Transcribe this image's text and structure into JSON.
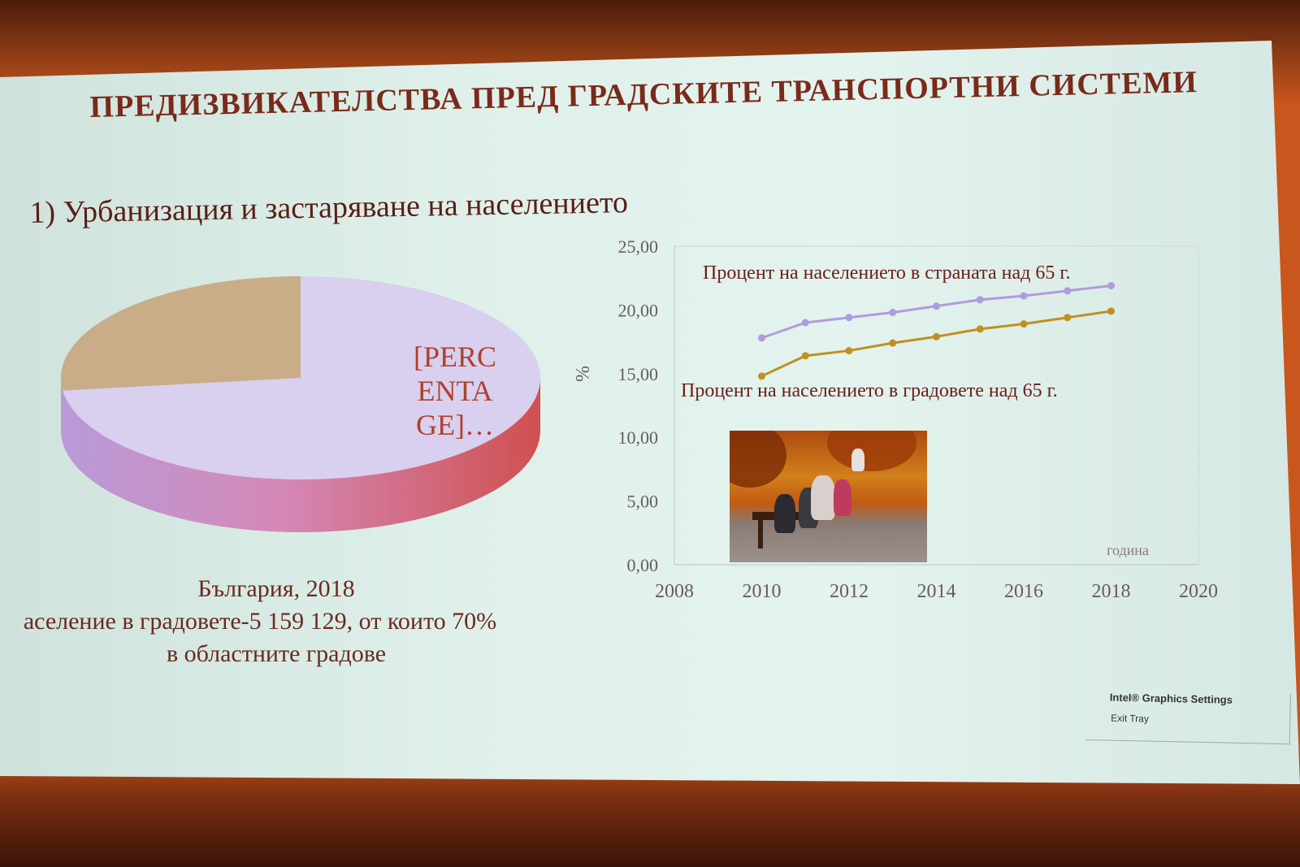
{
  "slide": {
    "title": "ПРЕДИЗВИКАТЕЛСТВА ПРЕД ГРАДСКИТЕ ТРАНСПОРТНИ СИСТЕМИ",
    "subtitle": "1) Урбанизация и застаряване на населението"
  },
  "pie": {
    "label_lines": [
      "[PERC",
      "ENTA",
      "GE]…"
    ],
    "slices": [
      {
        "share": 0.73,
        "color": "#d9cfee"
      },
      {
        "share": 0.27,
        "color": "#c8ad88"
      }
    ]
  },
  "caption": {
    "line1": "България, 2018",
    "line2": "аселение в градовете-5 159 129, от които 70%",
    "line3": "в областните градове"
  },
  "chart_data": {
    "type": "line",
    "x": [
      2010,
      2011,
      2012,
      2013,
      2014,
      2015,
      2016,
      2017,
      2018
    ],
    "series": [
      {
        "name": "Процент на населението в страната над 65 г.",
        "values": [
          17.8,
          19.0,
          19.4,
          19.8,
          20.3,
          20.8,
          21.1,
          21.5,
          21.9
        ],
        "color": "#b09ae0"
      },
      {
        "name": "Процент на населението в градовете над 65 г.",
        "values": [
          14.8,
          16.4,
          16.8,
          17.4,
          17.9,
          18.5,
          18.9,
          19.4,
          19.9
        ],
        "color": "#c09020"
      }
    ],
    "xlim": [
      2008,
      2020
    ],
    "ylim": [
      0,
      25
    ],
    "xticks": [
      "2008",
      "2010",
      "2012",
      "2014",
      "2016",
      "2018",
      "2020"
    ],
    "yticks": [
      "0,00",
      "5,00",
      "10,00",
      "15,00",
      "20,00",
      "25,00"
    ],
    "ylabel": "%",
    "xlabel": "година",
    "grid": false
  },
  "intel_tray": {
    "title": "Intel® Graphics Settings",
    "exit": "Exit Tray"
  }
}
